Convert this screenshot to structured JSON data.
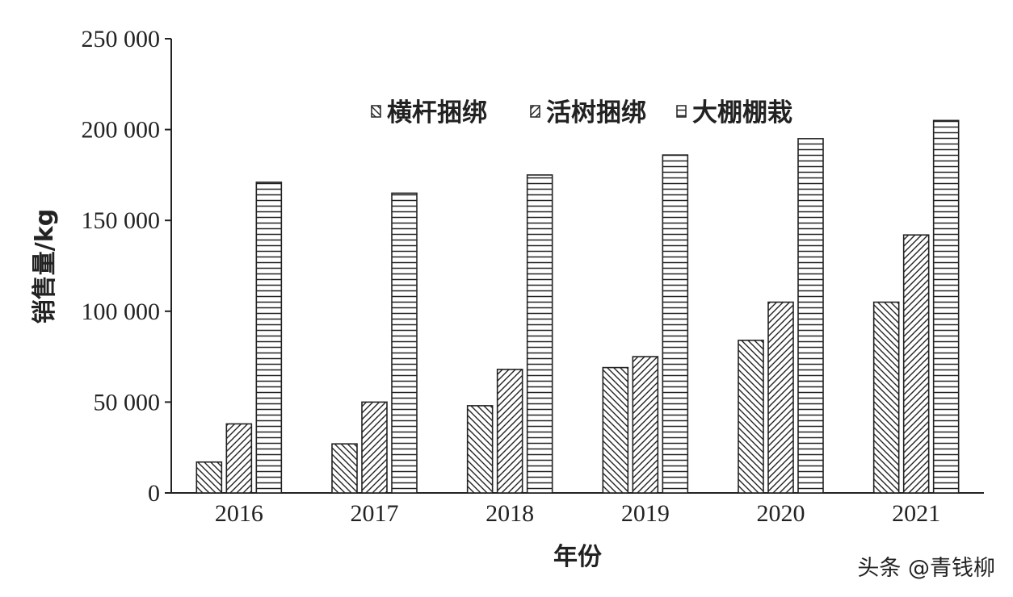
{
  "chart_data": {
    "type": "bar",
    "title": "",
    "xlabel": "年份",
    "ylabel": "销售量/kg",
    "ylim": [
      0,
      250000
    ],
    "yticks": [
      0,
      50000,
      100000,
      150000,
      200000,
      250000
    ],
    "ytick_labels": [
      "0",
      "50 000",
      "100 000",
      "150 000",
      "200 000",
      "250 000"
    ],
    "categories": [
      "2016",
      "2017",
      "2018",
      "2019",
      "2020",
      "2021"
    ],
    "series": [
      {
        "name": "横杆捆绑",
        "pattern": "diag-down",
        "values": [
          17000,
          27000,
          48000,
          69000,
          84000,
          105000
        ]
      },
      {
        "name": "活树捆绑",
        "pattern": "diag-up",
        "values": [
          38000,
          50000,
          68000,
          75000,
          105000,
          142000
        ]
      },
      {
        "name": "大棚棚栽",
        "pattern": "horizontal",
        "values": [
          171000,
          165000,
          175000,
          186000,
          195000,
          205000
        ]
      }
    ],
    "legend_position": "top-right",
    "grid": false
  },
  "watermark": "头条 @青钱柳",
  "colors": {
    "ink": "#222222",
    "background": "#ffffff"
  }
}
